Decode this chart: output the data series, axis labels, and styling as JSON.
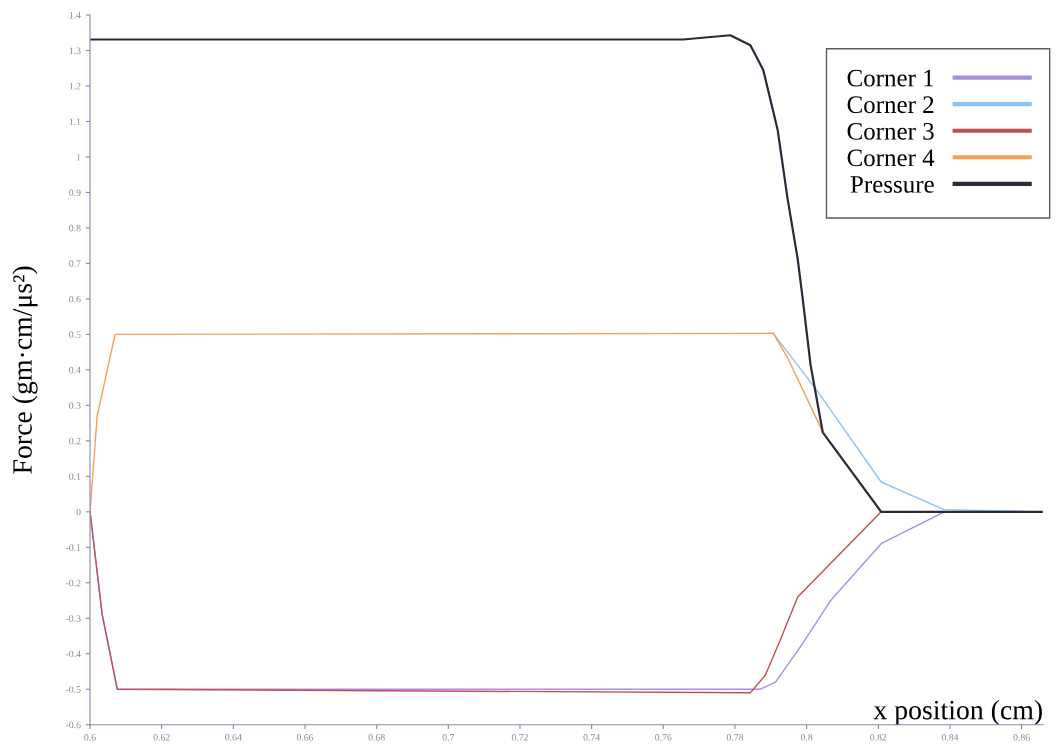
{
  "chart_data": {
    "type": "line",
    "xlabel": "x position (cm)",
    "ylabel": "Force (gm·cm/μs²)",
    "xlim": [
      0.6,
      0.866
    ],
    "xticks": [
      0.6,
      0.62,
      0.64,
      0.66,
      0.68,
      0.7,
      0.72,
      0.74,
      0.76,
      0.78,
      0.8,
      0.82,
      0.84,
      0.86
    ],
    "ylim": [
      -0.6,
      1.4
    ],
    "yticks": [
      -0.6,
      -0.5,
      -0.4,
      -0.3,
      -0.2,
      -0.1,
      0,
      0.1,
      0.2,
      0.3,
      0.4,
      0.5,
      0.6,
      0.7,
      0.8,
      0.9,
      1,
      1.1,
      1.2,
      1.3,
      1.4
    ],
    "grid": false,
    "legend": "top right",
    "marker": "none",
    "line_style": "solid",
    "series": [
      {
        "name": "Corner 1",
        "color": "#a98ee0",
        "x": [
          0.6,
          0.6034,
          0.6076,
          0.7871,
          0.7913,
          0.7983,
          0.8067,
          0.8208,
          0.8384,
          0.8656
        ],
        "values": [
          0,
          -0.29,
          -0.5,
          -0.5,
          -0.48,
          -0.38,
          -0.25,
          -0.09,
          0,
          0
        ]
      },
      {
        "name": "Corner 2",
        "color": "#8cc4f0",
        "x": [
          0.7907,
          0.803,
          0.8208,
          0.8384,
          0.8656
        ],
        "values": [
          0.503,
          0.34,
          0.084,
          0.006,
          0
        ]
      },
      {
        "name": "Corner 3",
        "color": "#c0504d",
        "x": [
          0.6,
          0.6034,
          0.6076,
          0.7843,
          0.7885,
          0.7927,
          0.7975,
          0.8208,
          0.8656
        ],
        "values": [
          0,
          -0.29,
          -0.5,
          -0.51,
          -0.46,
          -0.36,
          -0.24,
          0,
          0
        ]
      },
      {
        "name": "Corner 4",
        "color": "#f8a050",
        "x": [
          0.6,
          0.602,
          0.607,
          0.7907,
          0.7947,
          0.803,
          0.8045,
          0.8208,
          0.8656
        ],
        "values": [
          0,
          0.27,
          0.5,
          0.503,
          0.434,
          0.257,
          0.224,
          0,
          0
        ]
      },
      {
        "name": "Pressure",
        "color": "#2a2a3a",
        "x": [
          0.6,
          0.7655,
          0.7787,
          0.7843,
          0.7879,
          0.7919,
          0.7947,
          0.7975,
          0.7989,
          0.8011,
          0.8045,
          0.8208,
          0.8656
        ],
        "values": [
          1.331,
          1.331,
          1.343,
          1.315,
          1.245,
          1.077,
          0.881,
          0.713,
          0.601,
          0.414,
          0.224,
          0,
          0
        ]
      }
    ]
  }
}
